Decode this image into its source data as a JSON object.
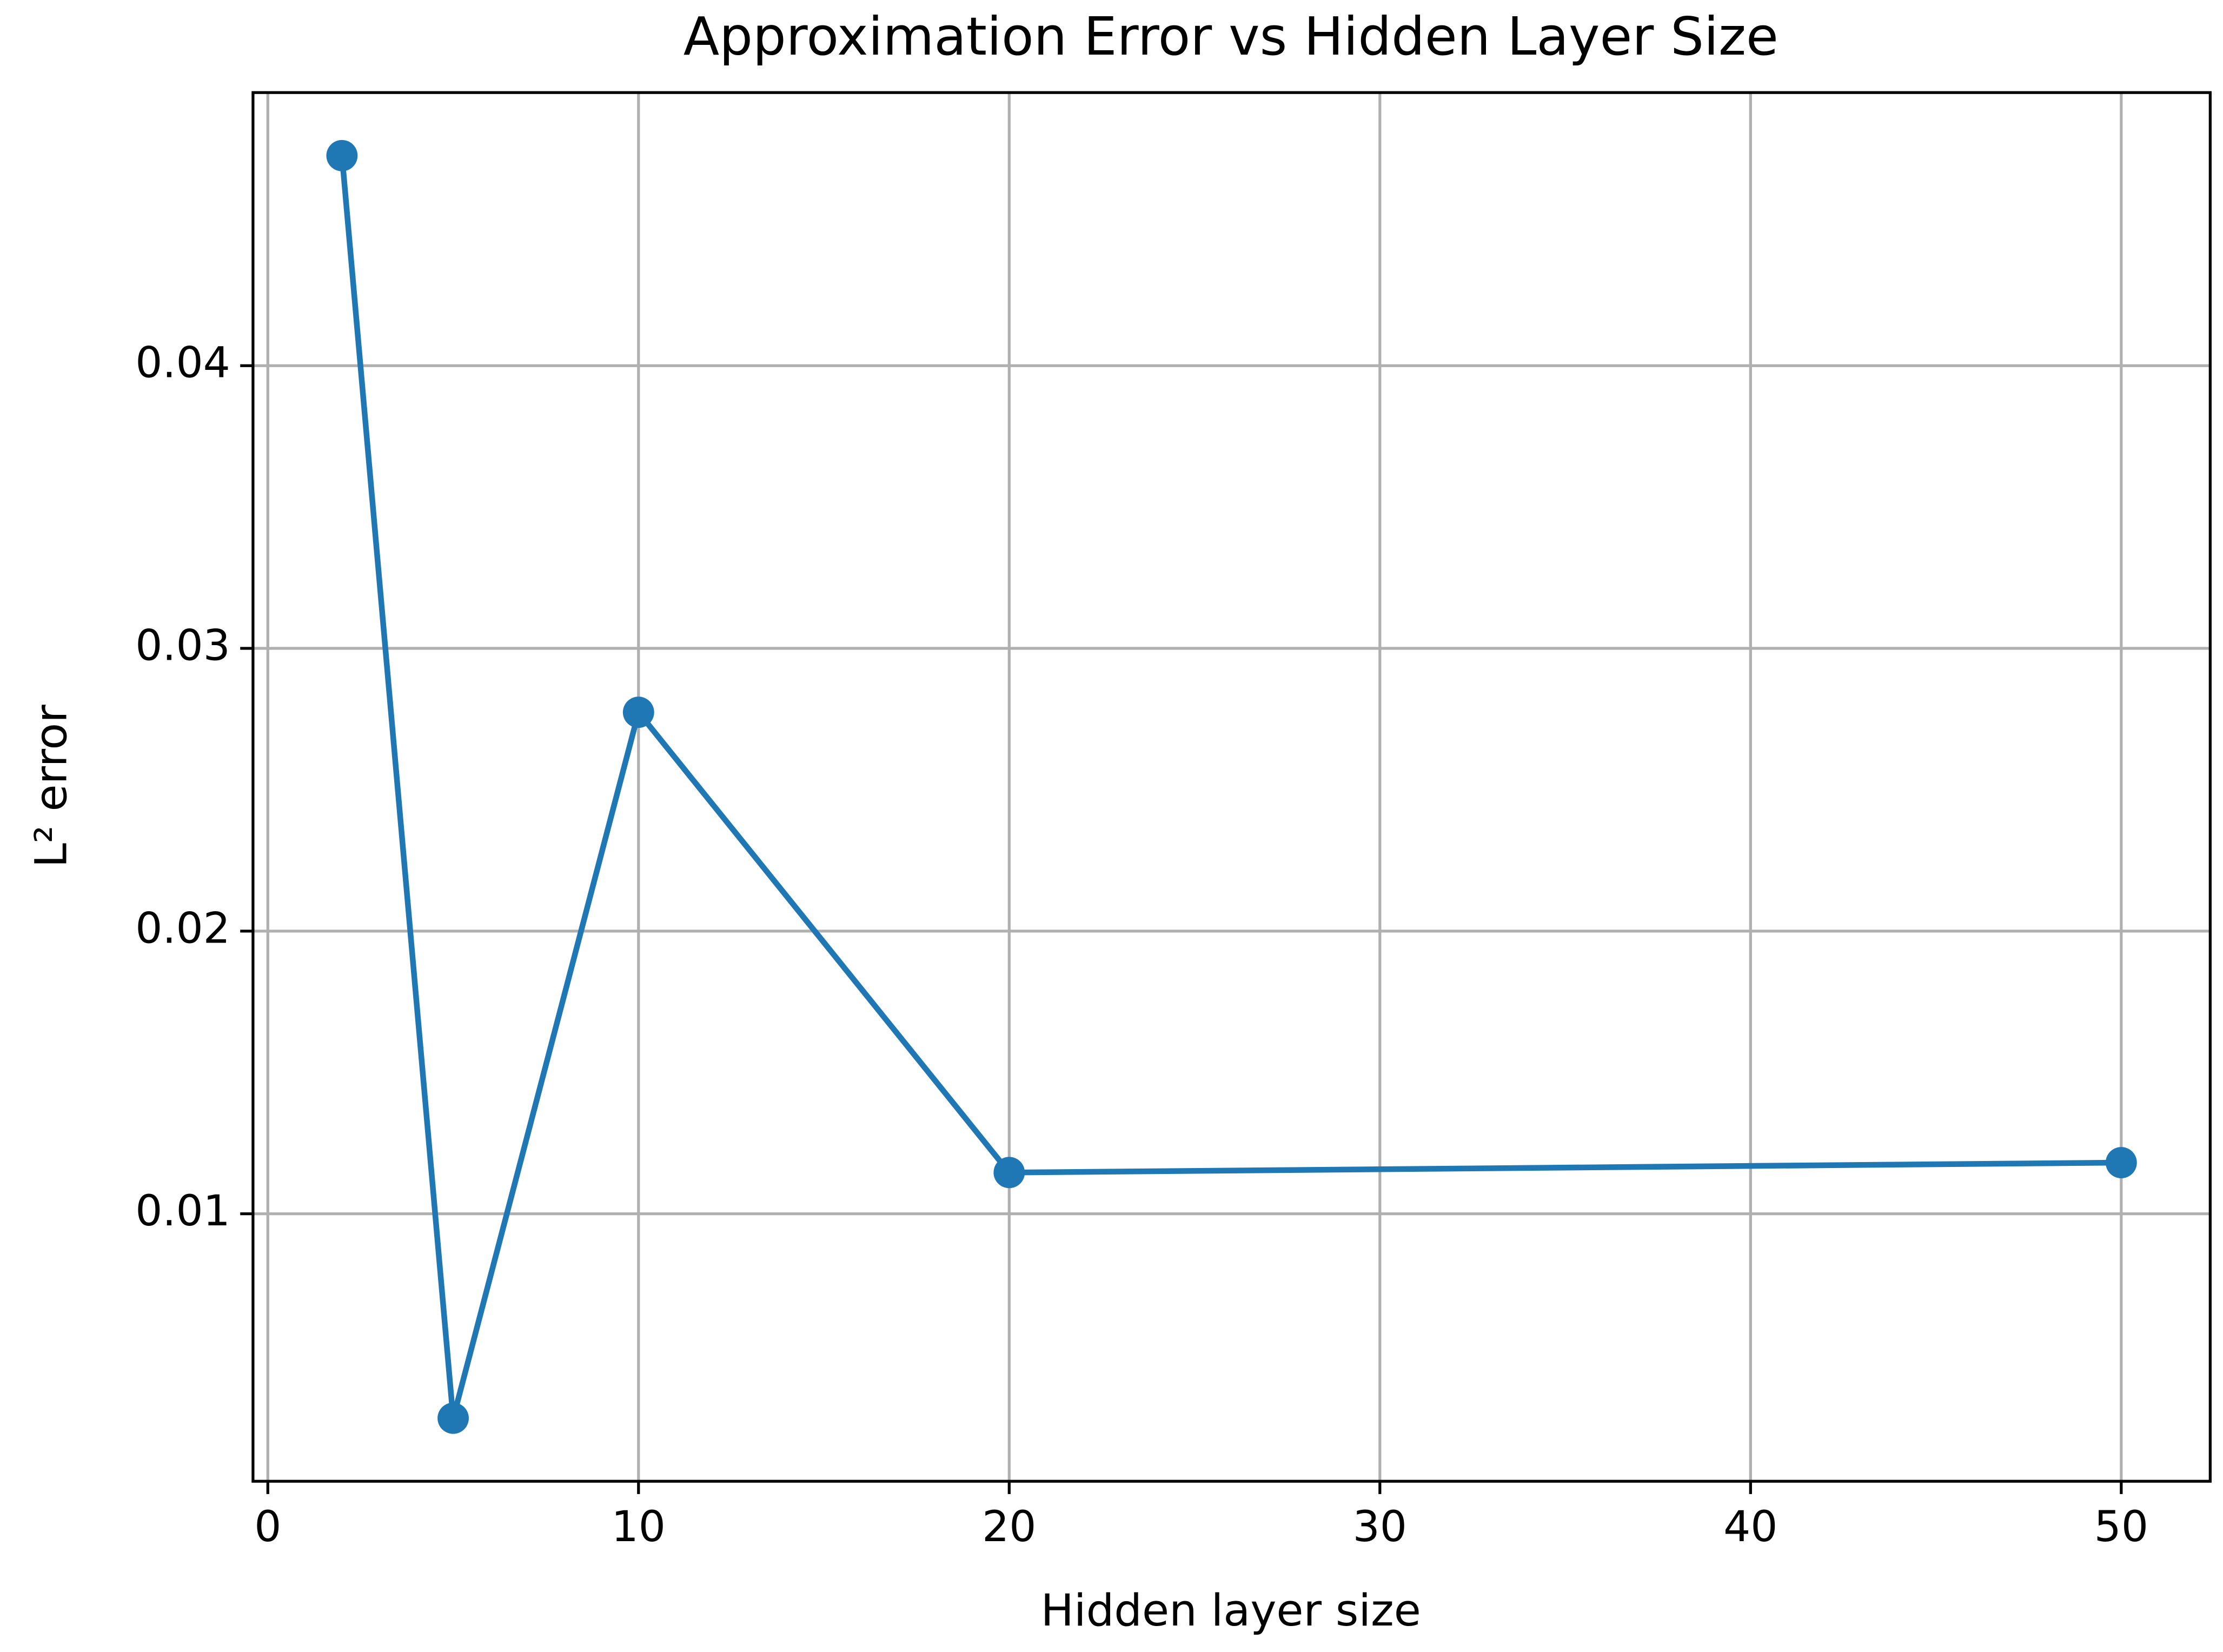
{
  "chart_data": {
    "type": "line",
    "title": "Approximation Error vs Hidden Layer Size",
    "xlabel": "Hidden layer size",
    "ylabel": "L² error",
    "x": [
      2,
      5,
      10,
      20,
      50
    ],
    "series": [
      {
        "name": "L² error",
        "color": "#1f77b4",
        "values": [
          0.04743,
          0.00277,
          0.02774,
          0.01146,
          0.01181
        ]
      }
    ],
    "xlim": [
      -0.4,
      52.4
    ],
    "xticks": [
      0,
      10,
      20,
      30,
      40,
      50
    ],
    "ylim": [
      0.00054,
      0.04966
    ],
    "yticks": [
      0.01,
      0.02,
      0.03,
      0.04
    ],
    "grid": true,
    "markers": true
  }
}
